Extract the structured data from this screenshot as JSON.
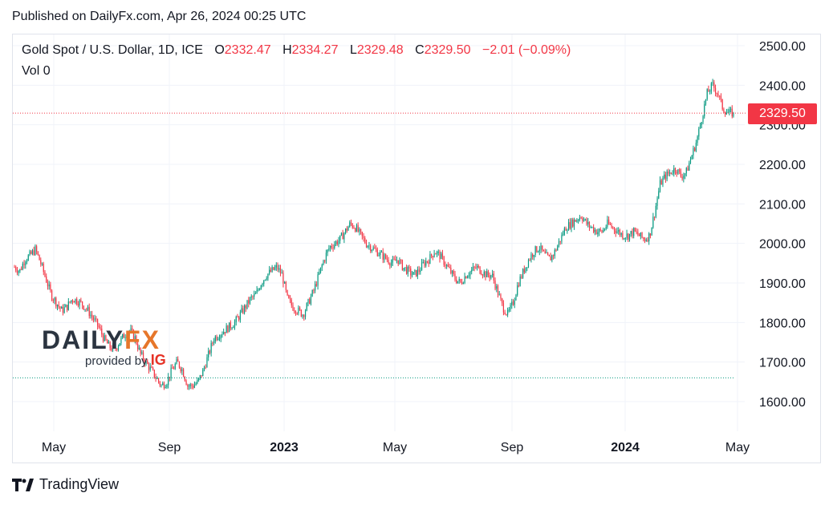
{
  "header": {
    "published": "Published on DailyFx.com, Apr 26, 2024 00:25 UTC"
  },
  "legend": {
    "symbol": "Gold Spot / U.S. Dollar, 1D, ICE",
    "open_label": "O",
    "open": "2332.47",
    "high_label": "H",
    "high": "2334.27",
    "low_label": "L",
    "low": "2329.48",
    "close_label": "C",
    "close": "2329.50",
    "change": "−2.01 (−0.09%)",
    "vol_label": "Vol",
    "vol": "0"
  },
  "price_badge": "2329.50",
  "watermark": {
    "brand_a": "DAILY",
    "brand_b": "FX",
    "provided_by": "provided by",
    "ig": "IG"
  },
  "footer": {
    "brand": "TradingView"
  },
  "colors": {
    "up": "#089981",
    "down": "#f23645",
    "grid": "#f0f3fa",
    "badge": "#f23645"
  },
  "chart_data": {
    "type": "candlestick",
    "y_ticks": [
      "2500.00",
      "2400.00",
      "2300.00",
      "2200.00",
      "2100.00",
      "2000.00",
      "1900.00",
      "1800.00",
      "1700.00",
      "1600.00"
    ],
    "x_ticks": [
      {
        "label": "May",
        "bold": false
      },
      {
        "label": "Sep",
        "bold": false
      },
      {
        "label": "2023",
        "bold": true
      },
      {
        "label": "May",
        "bold": false
      },
      {
        "label": "Sep",
        "bold": false
      },
      {
        "label": "2024",
        "bold": true
      },
      {
        "label": "May",
        "bold": false
      }
    ],
    "ylim": [
      1570,
      2530
    ],
    "last_price": 2329.5,
    "reference_line": 1660,
    "close_path": [
      1940,
      1930,
      1960,
      1970,
      1985,
      1950,
      1910,
      1870,
      1850,
      1830,
      1840,
      1860,
      1855,
      1845,
      1830,
      1810,
      1790,
      1760,
      1740,
      1730,
      1750,
      1770,
      1780,
      1760,
      1720,
      1700,
      1680,
      1660,
      1640,
      1650,
      1680,
      1700,
      1680,
      1640,
      1640,
      1650,
      1680,
      1720,
      1760,
      1770,
      1780,
      1790,
      1800,
      1820,
      1840,
      1860,
      1870,
      1900,
      1920,
      1930,
      1940,
      1920,
      1860,
      1840,
      1830,
      1820,
      1850,
      1880,
      1920,
      1960,
      1990,
      2000,
      2010,
      2030,
      2050,
      2040,
      2020,
      2000,
      1990,
      1980,
      1970,
      1960,
      1950,
      1960,
      1940,
      1930,
      1920,
      1930,
      1950,
      1960,
      1980,
      1970,
      1950,
      1930,
      1910,
      1900,
      1920,
      1930,
      1940,
      1930,
      1920,
      1920,
      1880,
      1840,
      1820,
      1850,
      1900,
      1930,
      1960,
      1980,
      1990,
      1970,
      1960,
      1980,
      2010,
      2040,
      2050,
      2060,
      2070,
      2050,
      2040,
      2030,
      2030,
      2050,
      2040,
      2030,
      2020,
      2020,
      2030,
      2020,
      2010,
      2020,
      2080,
      2150,
      2170,
      2180,
      2190,
      2170,
      2180,
      2220,
      2260,
      2320,
      2380,
      2400,
      2380,
      2340,
      2330,
      2329.5
    ]
  }
}
